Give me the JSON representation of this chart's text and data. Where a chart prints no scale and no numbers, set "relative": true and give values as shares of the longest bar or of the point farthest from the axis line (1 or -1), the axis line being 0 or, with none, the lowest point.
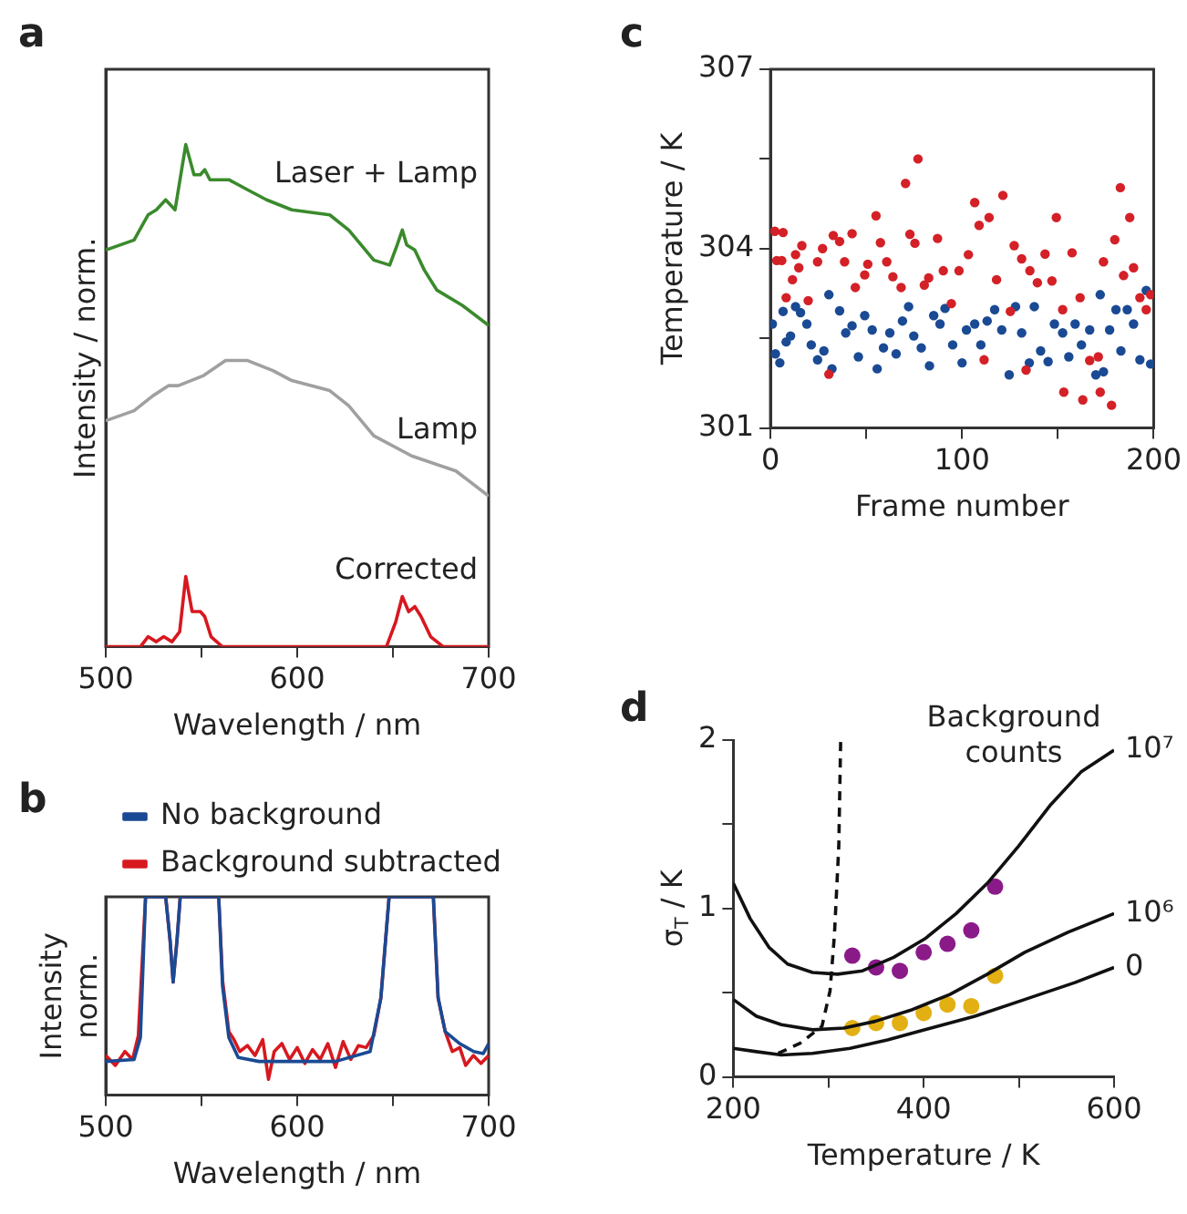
{
  "chart_data": [
    {
      "type": "line",
      "title": "a",
      "xlabel": "Wavelength / nm",
      "ylabel": "Intensity / norm.",
      "relative": true,
      "legend": false,
      "xlim": [
        500,
        700
      ],
      "xticks": [
        500,
        {
          "value": 550,
          "label": null
        },
        600,
        {
          "value": 650,
          "label": null
        },
        700
      ],
      "series": [
        {
          "name": "Laser + Lamp",
          "color": "#3a8a2c",
          "x": [
            500,
            514.8,
            522.1,
            526.4,
            531.3,
            536.2,
            541.8,
            546.1,
            549.4,
            551.7,
            554.4,
            564.3,
            574.1,
            584.0,
            597.2,
            617.0,
            626.9,
            640.0,
            648.3,
            652.2,
            654.9,
            657.2,
            661.4,
            666.4,
            673.0,
            686.2,
            700
          ],
          "values": [
            0.79,
            0.81,
            0.86,
            0.87,
            0.89,
            0.87,
            1.0,
            0.94,
            0.94,
            0.95,
            0.93,
            0.93,
            0.91,
            0.89,
            0.87,
            0.86,
            0.83,
            0.77,
            0.76,
            0.8,
            0.83,
            0.8,
            0.79,
            0.75,
            0.71,
            0.68,
            0.64
          ]
        },
        {
          "name": "Lamp",
          "color": "#a0a0a0",
          "x": [
            500,
            514.8,
            524.7,
            532.9,
            537.9,
            544.5,
            551.1,
            562.6,
            574.1,
            587.3,
            597.2,
            617.0,
            626.9,
            640.0,
            659.8,
            682.9,
            700
          ],
          "values": [
            0.45,
            0.47,
            0.5,
            0.52,
            0.52,
            0.53,
            0.54,
            0.57,
            0.57,
            0.55,
            0.53,
            0.51,
            0.48,
            0.42,
            0.38,
            0.35,
            0.3
          ]
        },
        {
          "name": "Corrected",
          "color": "#d7181f",
          "x": [
            500,
            518.1,
            522.1,
            526.4,
            530.3,
            534.6,
            538.6,
            541.8,
            545.1,
            549.4,
            551.7,
            555.0,
            560.9,
            646.6,
            651.5,
            654.9,
            658.2,
            661.4,
            664.7,
            669.7,
            676.3,
            700
          ],
          "values": [
            0,
            0,
            0.02,
            0.01,
            0.02,
            0.01,
            0.03,
            0.14,
            0.07,
            0.07,
            0.06,
            0.02,
            0,
            0,
            0.05,
            0.1,
            0.07,
            0.08,
            0.06,
            0.02,
            0,
            0
          ]
        }
      ]
    },
    {
      "type": "scatter",
      "title": "c",
      "xlabel": "Frame number",
      "ylabel": "Temperature / K",
      "marker": "circle",
      "xlim": [
        0,
        200
      ],
      "xticks": [
        0,
        {
          "value": 50,
          "label": null
        },
        100,
        {
          "value": 150,
          "label": null
        },
        200
      ],
      "ylim": [
        301,
        307
      ],
      "yticks": [
        301,
        {
          "value": 302.5,
          "label": null
        },
        304,
        {
          "value": 305.5,
          "label": null
        },
        307
      ],
      "series": [
        {
          "color": "#d42027",
          "x": [
            2.3,
            6.6,
            3.3,
            5.9,
            8.2,
            11.5,
            13.1,
            16.4,
            14.8,
            19.7,
            24.6,
            27.2,
            30.5,
            32.8,
            36.1,
            38.7,
            42.6,
            44.3,
            49.2,
            50.8,
            55.1,
            57.4,
            60.7,
            63.9,
            68.2,
            70.5,
            72.8,
            75.4,
            77.0,
            80.3,
            82.6,
            87.2,
            90.2,
            94.4,
            98.4,
            103.3,
            106.6,
            108.9,
            111.5,
            114.1,
            118.0,
            121.3,
            125.2,
            127.2,
            131.1,
            133.4,
            135.4,
            139.3,
            143.3,
            146.9,
            149.2,
            152.5,
            153.1,
            157.4,
            161.6,
            163.0,
            166.6,
            171.1,
            172.1,
            173.8,
            178.0,
            179.7,
            182.6,
            184.3,
            187.5,
            189.5,
            192.8,
            196.1,
            198.4
          ],
          "values": [
            304.29,
            304.27,
            303.8,
            303.8,
            303.18,
            303.48,
            303.9,
            304.05,
            303.68,
            303.13,
            303.78,
            304.0,
            301.9,
            304.22,
            304.12,
            303.78,
            304.25,
            303.35,
            303.56,
            303.74,
            304.55,
            304.1,
            303.78,
            303.53,
            303.35,
            305.09,
            304.24,
            304.09,
            305.5,
            303.39,
            303.51,
            304.17,
            303.63,
            303.08,
            303.63,
            303.9,
            304.77,
            304.39,
            302.14,
            304.52,
            303.48,
            304.89,
            302.95,
            304.05,
            303.83,
            301.97,
            303.63,
            303.43,
            303.91,
            303.46,
            304.52,
            302.98,
            301.6,
            303.93,
            303.18,
            301.47,
            302.13,
            302.19,
            301.6,
            303.78,
            301.38,
            304.15,
            305.02,
            303.55,
            304.52,
            303.68,
            303.18,
            302.98,
            303.23
          ]
        },
        {
          "color": "#1a4a94",
          "x": [
            1.0,
            2.6,
            4.9,
            6.6,
            8.2,
            10.5,
            13.1,
            15.7,
            19.0,
            21.3,
            24.6,
            27.9,
            30.5,
            32.1,
            36.1,
            39.3,
            42.6,
            45.9,
            49.2,
            53.1,
            55.7,
            59.0,
            62.3,
            65.6,
            68.9,
            72.1,
            74.8,
            78.7,
            83.0,
            85.2,
            88.5,
            91.1,
            95.1,
            100,
            102.3,
            106.6,
            109.8,
            113.1,
            117.0,
            120.7,
            124.6,
            127.9,
            131.1,
            135.1,
            137.7,
            141.0,
            144.9,
            148.2,
            152.5,
            155.7,
            159.0,
            162.3,
            166.6,
            169.8,
            172.1,
            173.8,
            177.0,
            180.3,
            182.9,
            186.2,
            189.5,
            192.8,
            196.1,
            198.4
          ],
          "values": [
            302.74,
            302.24,
            302.09,
            302.95,
            302.44,
            302.54,
            303.03,
            302.93,
            302.74,
            302.39,
            302.14,
            302.29,
            303.23,
            301.99,
            302.96,
            302.59,
            302.71,
            302.19,
            302.88,
            302.64,
            301.99,
            302.34,
            302.59,
            302.24,
            302.79,
            303.03,
            302.54,
            302.34,
            302.04,
            302.88,
            302.74,
            303.0,
            302.39,
            302.09,
            302.64,
            302.74,
            302.39,
            302.79,
            302.98,
            302.64,
            301.89,
            303.03,
            302.59,
            302.09,
            303.03,
            302.29,
            302.11,
            302.74,
            302.59,
            302.19,
            302.74,
            302.39,
            302.64,
            301.89,
            303.23,
            301.94,
            302.64,
            302.98,
            302.29,
            302.98,
            302.74,
            302.14,
            303.3,
            302.07
          ]
        }
      ]
    },
    {
      "type": "line",
      "title": "b",
      "xlabel": "Wavelength / nm",
      "ylabel": "Intensity\nnorm.",
      "relative": true,
      "legend": "top left",
      "xlim": [
        500,
        700
      ],
      "xticks": [
        500,
        {
          "value": 550,
          "label": null
        },
        600,
        {
          "value": 650,
          "label": null
        },
        700
      ],
      "series": [
        {
          "name": "No background",
          "color": "#1a4a94",
          "x": [
            500,
            514.8,
            518.1,
            520.8,
            531.3,
            533.6,
            535.2,
            537.2,
            538.9,
            559.0,
            561.0,
            564.3,
            569.2,
            580,
            620,
            638.1,
            643.7,
            648.0,
            671.1,
            673.6,
            677.3,
            684.9,
            692.2,
            697.2,
            700
          ],
          "values": [
            0.17,
            0.18,
            0.29,
            1,
            1,
            0.78,
            0.57,
            0.78,
            1,
            1,
            0.55,
            0.29,
            0.19,
            0.17,
            0.17,
            0.22,
            0.49,
            1,
            1,
            0.49,
            0.32,
            0.26,
            0.22,
            0.21,
            0.26
          ]
        },
        {
          "name": "Background subtracted",
          "color": "#d7181f",
          "x": [
            500,
            505,
            510,
            514,
            517,
            520.8,
            531.3,
            533.6,
            535.2,
            537.2,
            538.9,
            559,
            561,
            564.3,
            567,
            570,
            574,
            578,
            582,
            585,
            588,
            592,
            596,
            600,
            604,
            608,
            612,
            616,
            620,
            624,
            628,
            632,
            636,
            640,
            643.7,
            648,
            671.1,
            673.6,
            677.3,
            681,
            684.9,
            688,
            692,
            696,
            700
          ],
          "values": [
            0.2,
            0.15,
            0.22,
            0.18,
            0.3,
            1,
            1,
            0.78,
            0.57,
            0.78,
            1,
            1,
            0.58,
            0.32,
            0.28,
            0.22,
            0.25,
            0.2,
            0.28,
            0.08,
            0.22,
            0.26,
            0.18,
            0.24,
            0.16,
            0.23,
            0.18,
            0.26,
            0.14,
            0.27,
            0.18,
            0.25,
            0.24,
            0.3,
            0.49,
            1,
            1,
            0.49,
            0.32,
            0.22,
            0.24,
            0.15,
            0.2,
            0.16,
            0.2
          ]
        }
      ]
    },
    {
      "type": "line",
      "title": "d",
      "xlabel": "Temperature / K",
      "ylabel": "σ$_{T}$ / K",
      "legend_title": "Background counts",
      "legend": false,
      "xlim": [
        200,
        600
      ],
      "xticks": [
        200,
        {
          "value": 300,
          "label": null
        },
        400,
        {
          "value": 500,
          "label": null
        },
        600
      ],
      "ylim": [
        0,
        2
      ],
      "yticks": [
        0,
        {
          "value": 0.5,
          "label": null
        },
        1,
        {
          "value": 1.5,
          "label": null
        },
        2
      ],
      "series": [
        {
          "name": "10⁷",
          "color": "#111111",
          "x": [
            200,
            217.7,
            237.4,
            257,
            283.3,
            309.5,
            335.7,
            368.5,
            401.3,
            434.1,
            466.9,
            499.7,
            532.5,
            565.2,
            600
          ],
          "values": [
            1.15,
            0.94,
            0.77,
            0.67,
            0.62,
            0.61,
            0.63,
            0.71,
            0.82,
            0.97,
            1.15,
            1.37,
            1.61,
            1.81,
            1.94
          ]
        },
        {
          "name": "10⁶",
          "color": "#111111",
          "x": [
            200,
            224.3,
            250.5,
            283.3,
            316.1,
            348.9,
            388.2,
            427.5,
            466.9,
            506.2,
            552.1,
            600
          ],
          "values": [
            0.46,
            0.36,
            0.31,
            0.28,
            0.29,
            0.33,
            0.4,
            0.49,
            0.61,
            0.74,
            0.86,
            0.97
          ]
        },
        {
          "name": "0",
          "color": "#111111",
          "x": [
            200,
            224.3,
            250.5,
            283.3,
            322.6,
            362,
            401.3,
            453.8,
            506.2,
            558.7,
            600
          ],
          "values": [
            0.17,
            0.15,
            0.13,
            0.14,
            0.17,
            0.22,
            0.28,
            0.36,
            0.46,
            0.56,
            0.65
          ]
        },
        {
          "color": "#111111",
          "line_style": "dashed",
          "x": [
            247.2,
            270.2,
            293.1,
            301.6,
            306.2,
            310.8,
            312.8
          ],
          "values": [
            0.14,
            0.2,
            0.3,
            0.51,
            0.84,
            1.37,
            2.0
          ]
        },
        {
          "type": "scatter",
          "color": "#8b1a89",
          "x": [
            325,
            350,
            375,
            400,
            425,
            450,
            475
          ],
          "values": [
            0.72,
            0.65,
            0.63,
            0.74,
            0.79,
            0.87,
            1.13
          ]
        },
        {
          "type": "scatter",
          "color": "#e2b013",
          "x": [
            325,
            350,
            375,
            400,
            425,
            450,
            475
          ],
          "values": [
            0.29,
            0.32,
            0.32,
            0.38,
            0.43,
            0.42,
            0.6
          ]
        }
      ]
    }
  ]
}
